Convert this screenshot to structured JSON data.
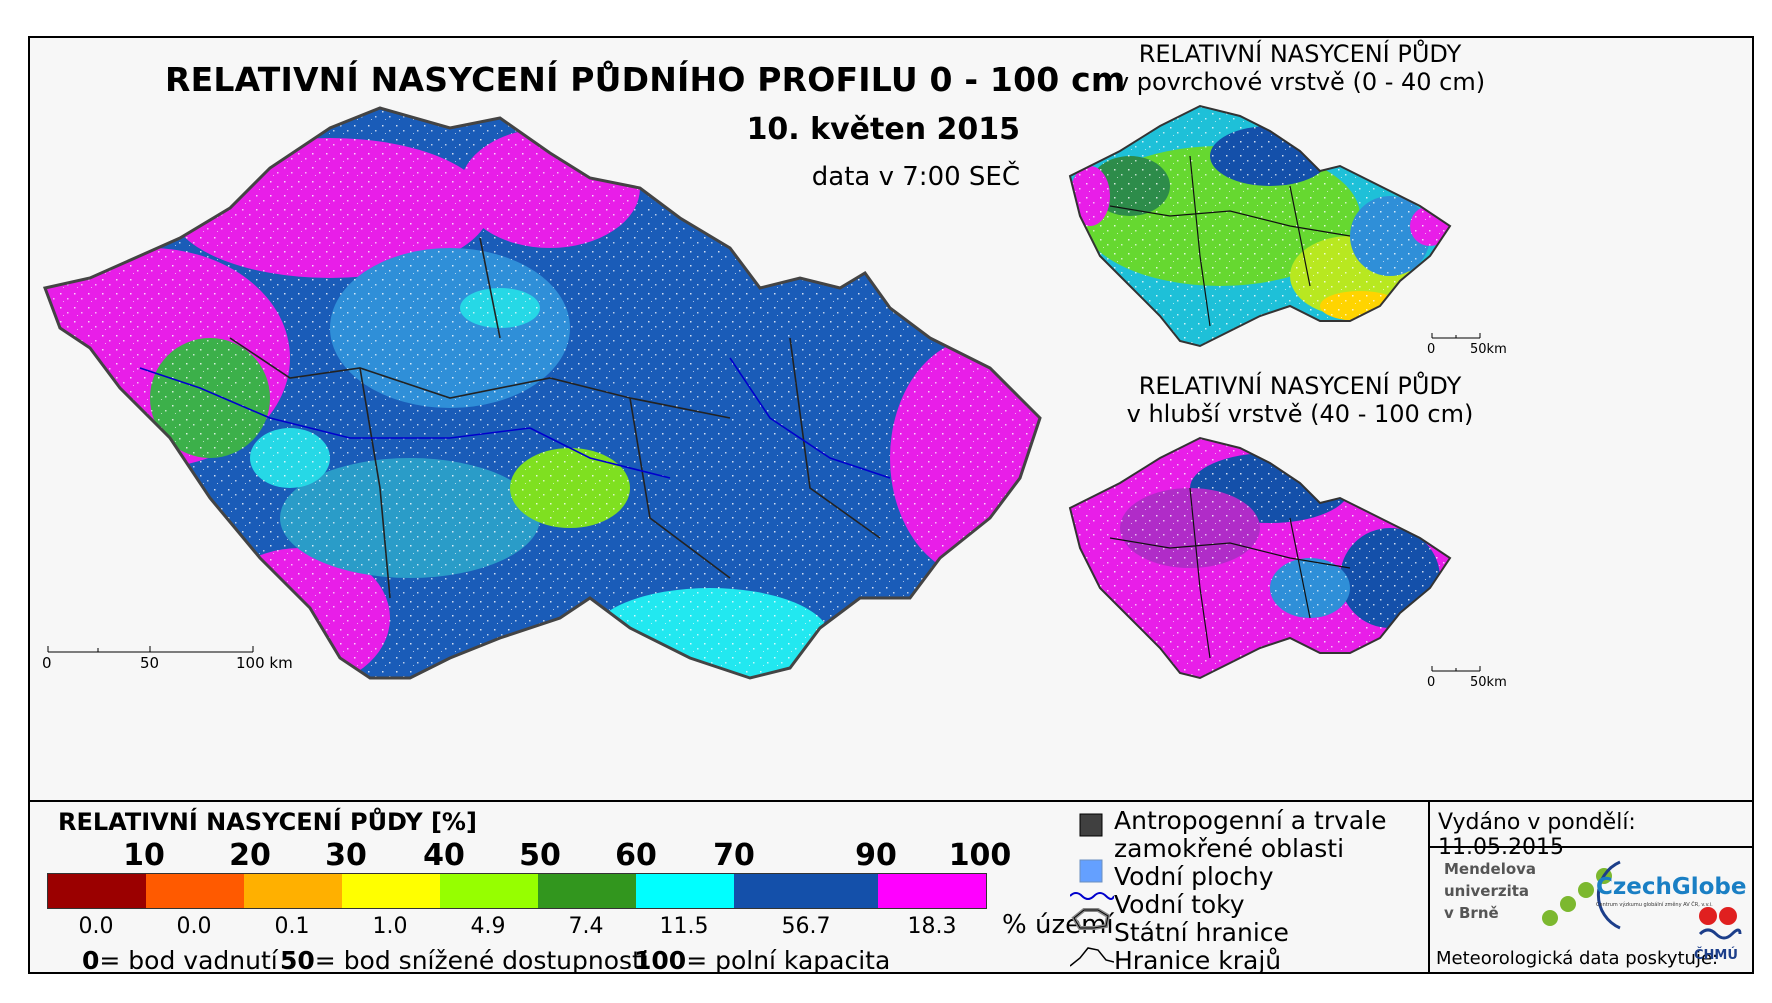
{
  "title": "RELATIVNÍ NASYCENÍ PŮDNÍHO PROFILU 0 - 100 cm",
  "date": "10. květen 2015",
  "data_time": "data v 7:00 SEČ",
  "main_scale": {
    "labels": [
      "0",
      "50",
      "100 km"
    ]
  },
  "surface_map": {
    "title_line1": "RELATIVNÍ NASYCENÍ PŮDY",
    "title_line2": "v povrchové vrstvě (0 - 40 cm)",
    "scale": [
      "0",
      "50km"
    ]
  },
  "deep_map": {
    "title_line1": "RELATIVNÍ NASYCENÍ PŮDY",
    "title_line2": "v hlubší vrstvě (40 - 100 cm)",
    "scale": [
      "0",
      "50km"
    ]
  },
  "legend": {
    "title": "RELATIVNÍ NASYCENÍ PŮDY [%]",
    "thresholds": [
      "10",
      "20",
      "30",
      "40",
      "50",
      "60",
      "70",
      "90",
      "100"
    ],
    "classes": [
      {
        "color": "#9b0000",
        "pct": "0.0"
      },
      {
        "color": "#ff5a00",
        "pct": "0.0"
      },
      {
        "color": "#ffb000",
        "pct": "0.1"
      },
      {
        "color": "#ffff00",
        "pct": "1.0"
      },
      {
        "color": "#96ff00",
        "pct": "4.9"
      },
      {
        "color": "#32961e",
        "pct": "7.4"
      },
      {
        "color": "#00ffff",
        "pct": "11.5"
      },
      {
        "color": "#1450aa",
        "pct": "56.7"
      },
      {
        "color": "#ff00ff",
        "pct": "18.3"
      }
    ],
    "pct_unit": "% území",
    "definitions": [
      {
        "value": "0",
        "text": "= bod vadnutí"
      },
      {
        "value": "50",
        "text": "= bod snížené dostupnosti"
      },
      {
        "value": "100",
        "text": "= polní kapacita"
      }
    ]
  },
  "symbols": {
    "anthropogenic_l1": "Antropogenní a trvale",
    "anthropogenic_l2": "zamokřené oblasti",
    "water_bodies": "Vodní plochy",
    "rivers": "Vodní toky",
    "state_border": "Státní hranice",
    "regional_border": "Hranice krajů",
    "anthropogenic_color": "#404040",
    "water_color": "#64a0ff",
    "river_color": "#0000cc"
  },
  "issued": "Vydáno v pondělí: 11.05.2015",
  "logos": {
    "mendel_l1": "Mendelova",
    "mendel_l2": "univerzita",
    "mendel_l3": "v Brně",
    "czechglobe": "CzechGlobe",
    "czechglobe_sub": "Centrum výzkumu globální změny AV ČR, v.v.i.",
    "chmu": "ČHMÚ"
  },
  "data_provider": "Meteorologická data poskytuje:"
}
